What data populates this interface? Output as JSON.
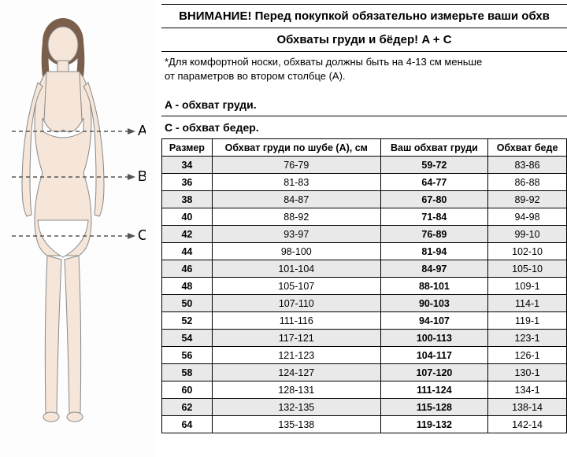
{
  "headline1": "ВНИМАНИЕ! Перед покупкой обязательно измерьте ваши обхв",
  "headline2": "Обхваты груди и бёдер! A + C",
  "note_line1": "*Для комфортной носки, обхваты должны быть на 4-13 см меньше",
  "note_line2": "от параметров во втором столбце (А).",
  "labelA": "A - обхват груди.",
  "labelC": "C - обхват бедер.",
  "measure_letters": {
    "A": "A",
    "B": "B",
    "C": "C"
  },
  "table": {
    "columns": [
      "Размер",
      "Обхват груди по шубе (А), см",
      "Ваш обхват груди",
      "Обхват беде"
    ],
    "rows": [
      [
        "34",
        "76-79",
        "59-72",
        "83-86"
      ],
      [
        "36",
        "81-83",
        "64-77",
        "86-88"
      ],
      [
        "38",
        "84-87",
        "67-80",
        "89-92"
      ],
      [
        "40",
        "88-92",
        "71-84",
        "94-98"
      ],
      [
        "42",
        "93-97",
        "76-89",
        "99-10"
      ],
      [
        "44",
        "98-100",
        "81-94",
        "102-10"
      ],
      [
        "46",
        "101-104",
        "84-97",
        "105-10"
      ],
      [
        "48",
        "105-107",
        "88-101",
        "109-1"
      ],
      [
        "50",
        "107-110",
        "90-103",
        "114-1"
      ],
      [
        "52",
        "111-116",
        "94-107",
        "119-1"
      ],
      [
        "54",
        "117-121",
        "100-113",
        "123-1"
      ],
      [
        "56",
        "121-123",
        "104-117",
        "126-1"
      ],
      [
        "58",
        "124-127",
        "107-120",
        "130-1"
      ],
      [
        "60",
        "128-131",
        "111-124",
        "134-1"
      ],
      [
        "62",
        "132-135",
        "115-128",
        "138-14"
      ],
      [
        "64",
        "135-138",
        "119-132",
        "142-14"
      ]
    ]
  },
  "figure_colors": {
    "skin": "#f5e6d9",
    "hair": "#7a5f4c",
    "underwear": "#ffffff",
    "outline": "#888888",
    "dash": "#555555",
    "text": "#000000"
  }
}
